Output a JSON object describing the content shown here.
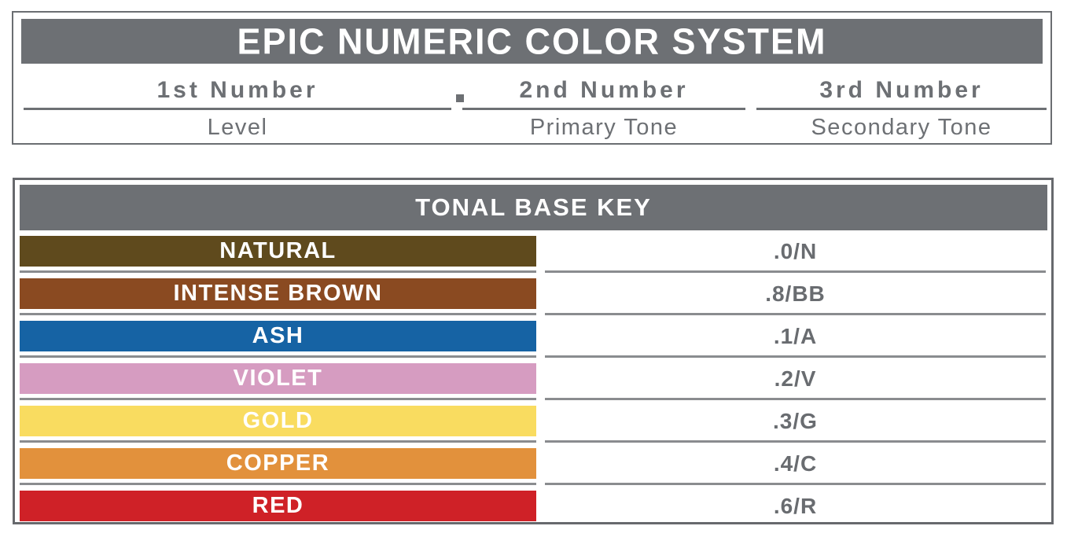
{
  "system_header": {
    "title": "EPIC NUMERIC COLOR SYSTEM",
    "separator": ".",
    "columns": [
      {
        "number_label": "1st Number",
        "tone_label": "Level"
      },
      {
        "number_label": "2nd Number",
        "tone_label": "Primary Tone"
      },
      {
        "number_label": "3rd Number",
        "tone_label": "Secondary Tone"
      }
    ]
  },
  "tonal_key": {
    "title": "TONAL BASE KEY",
    "rows": [
      {
        "label": "NATURAL",
        "code": ".0/N",
        "color": "#5f4a1d"
      },
      {
        "label": "INTENSE BROWN",
        "code": ".8/BB",
        "color": "#8a4a21"
      },
      {
        "label": "ASH",
        "code": ".1/A",
        "color": "#1663a4"
      },
      {
        "label": "VIOLET",
        "code": ".2/V",
        "color": "#d69cc1"
      },
      {
        "label": "GOLD",
        "code": ".3/G",
        "color": "#f9dc60"
      },
      {
        "label": "COPPER",
        "code": ".4/C",
        "color": "#e2913c"
      },
      {
        "label": "RED",
        "code": ".6/R",
        "color": "#cf2127"
      }
    ]
  },
  "colors": {
    "header_bg": "#6d7074",
    "box_border": "#67696d",
    "divider": "#8a8c8f",
    "text_gray": "#6d7074",
    "label_text": "#ffffff"
  }
}
